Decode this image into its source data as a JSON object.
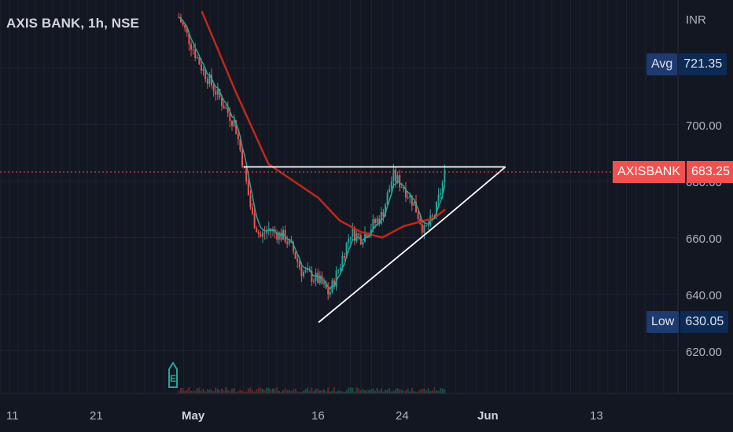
{
  "header": {
    "title": "AXIS BANK, 1h, NSE"
  },
  "price_axis": {
    "currency": "INR",
    "ticks": [
      "700.00",
      "680.00",
      "660.00",
      "640.00",
      "620.00"
    ]
  },
  "date_axis": {
    "ticks": [
      "11",
      "21",
      "May",
      "16",
      "24",
      "Jun",
      "13"
    ]
  },
  "tags": {
    "avg_label": "Avg",
    "avg_value": "721.35",
    "symbol": "AXISBANK",
    "last_value": "683.25",
    "low_label": "Low",
    "low_value": "630.05"
  },
  "colors": {
    "background": "#131722",
    "up": "#26a69a",
    "down": "#ef5350",
    "ma_slow": "#c0281a",
    "ma_fast": "#26a69a",
    "trendline": "#ffffff",
    "price_line": "#f0504f"
  },
  "icons": {
    "earnings_marker": "earnings-e-icon"
  },
  "chart_data": {
    "type": "candlestick",
    "title": "AXIS BANK, 1h, NSE",
    "ylabel": "INR",
    "yrange": [
      610,
      740
    ],
    "last_price": 683.25,
    "avg_price": 721.35,
    "low_price": 630.05,
    "close_path_x": [
      "Apr 29 12:00",
      "May 02",
      "May 04",
      "May 06",
      "May 07",
      "May 08",
      "May 09",
      "May 10",
      "May 12",
      "May 13",
      "May 14",
      "May 16",
      "May 17",
      "May 18",
      "May 19",
      "May 20",
      "May 22",
      "May 23",
      "May 24",
      "May 25",
      "May 26",
      "May 27",
      "May 28"
    ],
    "close_path_y": [
      738,
      720,
      710,
      700,
      685,
      668,
      660,
      663,
      660,
      655,
      648,
      645,
      640,
      650,
      662,
      660,
      668,
      682,
      678,
      672,
      662,
      668,
      683
    ],
    "ma_slow": {
      "x": [
        "May 02",
        "May 06",
        "May 10",
        "May 13",
        "May 16",
        "May 18",
        "May 20",
        "May 22",
        "May 24",
        "May 26",
        "May 27",
        "May 28"
      ],
      "y": [
        740,
        712,
        686,
        680,
        674,
        666,
        662,
        660,
        664,
        666,
        667,
        670
      ]
    },
    "trendlines": [
      {
        "name": "resistance",
        "x": [
          "May 07",
          "Jun 03"
        ],
        "y": [
          685,
          685
        ]
      },
      {
        "name": "support",
        "x": [
          "May 16",
          "May 28"
        ],
        "y": [
          630,
          667
        ]
      }
    ]
  }
}
